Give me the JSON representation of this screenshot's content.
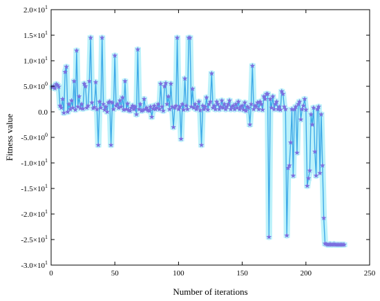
{
  "chart_data": {
    "type": "line",
    "title": "",
    "xlabel": "Number of iterations",
    "ylabel": "Fitness value",
    "xlim": [
      0,
      250
    ],
    "ylim": [
      -30,
      20
    ],
    "x_ticks": [
      {
        "value": 0,
        "label": "0"
      },
      {
        "value": 50,
        "label": "50"
      },
      {
        "value": 100,
        "label": "100"
      },
      {
        "value": 150,
        "label": "150"
      },
      {
        "value": 200,
        "label": "200"
      },
      {
        "value": 250,
        "label": "250"
      }
    ],
    "y_ticks": [
      {
        "value": 20,
        "label": "2.0×10",
        "exp": "1"
      },
      {
        "value": 15,
        "label": "1.5×10",
        "exp": "1"
      },
      {
        "value": 10,
        "label": "1.0×10",
        "exp": "1"
      },
      {
        "value": 5,
        "label": "5.0×10",
        "exp": "0"
      },
      {
        "value": 0,
        "label": "0.0",
        "exp": ""
      },
      {
        "value": -5,
        "label": "-5.0×10",
        "exp": "0"
      },
      {
        "value": -10,
        "label": "-1.0×10",
        "exp": "1"
      },
      {
        "value": -15,
        "label": "-1.5×10",
        "exp": "1"
      },
      {
        "value": -20,
        "label": "-2.0×10",
        "exp": "1"
      },
      {
        "value": -25,
        "label": "-2.5×10",
        "exp": "1"
      },
      {
        "value": -30,
        "label": "-3.0×10",
        "exp": "1"
      }
    ],
    "grid": false,
    "line_color": "#3fa9e8",
    "marker_color": "#7b6fe0",
    "band_color": "#bdf2fa",
    "marker": "star",
    "series": [
      {
        "values": [
          [
            1,
            4.8
          ],
          [
            2,
            5.0
          ],
          [
            3,
            4.6
          ],
          [
            4,
            5.4
          ],
          [
            5,
            5.2
          ],
          [
            6,
            4.9
          ],
          [
            7,
            1.2
          ],
          [
            8,
            0.8
          ],
          [
            9,
            2.5
          ],
          [
            10,
            -0.2
          ],
          [
            11,
            7.8
          ],
          [
            12,
            8.8
          ],
          [
            13,
            0.0
          ],
          [
            14,
            1.5
          ],
          [
            15,
            0.5
          ],
          [
            16,
            2.2
          ],
          [
            17,
            0.8
          ],
          [
            18,
            6.0
          ],
          [
            19,
            0.4
          ],
          [
            20,
            12.0
          ],
          [
            21,
            1.0
          ],
          [
            22,
            3.0
          ],
          [
            23,
            0.7
          ],
          [
            24,
            1.5
          ],
          [
            25,
            0.6
          ],
          [
            26,
            5.5
          ],
          [
            27,
            5.0
          ],
          [
            28,
            0.8
          ],
          [
            29,
            1.2
          ],
          [
            30,
            6.0
          ],
          [
            31,
            14.5
          ],
          [
            32,
            1.8
          ],
          [
            33,
            0.7
          ],
          [
            34,
            0.9
          ],
          [
            35,
            5.8
          ],
          [
            36,
            0.5
          ],
          [
            37,
            -6.5
          ],
          [
            38,
            2.0
          ],
          [
            39,
            0.8
          ],
          [
            40,
            14.5
          ],
          [
            41,
            1.5
          ],
          [
            42,
            0.4
          ],
          [
            43,
            1.0
          ],
          [
            44,
            0.0
          ],
          [
            45,
            1.8
          ],
          [
            46,
            2.0
          ],
          [
            47,
            -6.5
          ],
          [
            48,
            1.8
          ],
          [
            49,
            0.5
          ],
          [
            50,
            11.0
          ],
          [
            51,
            1.2
          ],
          [
            52,
            1.5
          ],
          [
            53,
            0.8
          ],
          [
            54,
            2.2
          ],
          [
            55,
            1.0
          ],
          [
            56,
            2.8
          ],
          [
            57,
            0.4
          ],
          [
            58,
            6.0
          ],
          [
            59,
            0.5
          ],
          [
            60,
            1.6
          ],
          [
            61,
            0.3
          ],
          [
            62,
            0.2
          ],
          [
            63,
            0.8
          ],
          [
            64,
            1.2
          ],
          [
            65,
            0.5
          ],
          [
            66,
            1.0
          ],
          [
            67,
            -0.5
          ],
          [
            68,
            12.2
          ],
          [
            69,
            0.5
          ],
          [
            70,
            1.5
          ],
          [
            71,
            0.2
          ],
          [
            72,
            0.3
          ],
          [
            73,
            2.5
          ],
          [
            74,
            0.5
          ],
          [
            75,
            0.8
          ],
          [
            76,
            0.3
          ],
          [
            77,
            0.2
          ],
          [
            78,
            1.0
          ],
          [
            79,
            -1.0
          ],
          [
            80,
            0.6
          ],
          [
            81,
            1.2
          ],
          [
            82,
            0.5
          ],
          [
            83,
            0.8
          ],
          [
            84,
            1.5
          ],
          [
            85,
            0.5
          ],
          [
            86,
            5.5
          ],
          [
            87,
            1.0
          ],
          [
            88,
            0.2
          ],
          [
            89,
            5.0
          ],
          [
            90,
            5.6
          ],
          [
            91,
            1.5
          ],
          [
            92,
            3.0
          ],
          [
            93,
            0.5
          ],
          [
            94,
            5.5
          ],
          [
            95,
            1.0
          ],
          [
            96,
            -3.0
          ],
          [
            97,
            0.8
          ],
          [
            98,
            1.2
          ],
          [
            99,
            14.5
          ],
          [
            100,
            0.5
          ],
          [
            101,
            1.0
          ],
          [
            102,
            -5.3
          ],
          [
            103,
            1.5
          ],
          [
            104,
            0.4
          ],
          [
            105,
            6.5
          ],
          [
            106,
            1.2
          ],
          [
            107,
            0.5
          ],
          [
            108,
            14.5
          ],
          [
            109,
            14.5
          ],
          [
            110,
            1.0
          ],
          [
            111,
            4.5
          ],
          [
            112,
            0.8
          ],
          [
            113,
            1.5
          ],
          [
            114,
            0.5
          ],
          [
            115,
            1.0
          ],
          [
            116,
            2.0
          ],
          [
            117,
            0.3
          ],
          [
            118,
            -6.5
          ],
          [
            119,
            1.2
          ],
          [
            120,
            0.5
          ],
          [
            121,
            1.0
          ],
          [
            122,
            2.8
          ],
          [
            123,
            0.4
          ],
          [
            124,
            1.5
          ],
          [
            125,
            2.0
          ],
          [
            126,
            7.5
          ],
          [
            127,
            0.8
          ],
          [
            128,
            1.2
          ],
          [
            129,
            0.5
          ],
          [
            130,
            2.0
          ],
          [
            131,
            1.5
          ],
          [
            132,
            0.5
          ],
          [
            133,
            1.0
          ],
          [
            134,
            2.2
          ],
          [
            135,
            0.8
          ],
          [
            136,
            1.5
          ],
          [
            137,
            0.5
          ],
          [
            138,
            1.0
          ],
          [
            139,
            1.5
          ],
          [
            140,
            2.2
          ],
          [
            141,
            0.5
          ],
          [
            142,
            1.0
          ],
          [
            143,
            1.2
          ],
          [
            144,
            0.5
          ],
          [
            145,
            1.5
          ],
          [
            146,
            0.8
          ],
          [
            147,
            2.0
          ],
          [
            148,
            0.5
          ],
          [
            149,
            1.0
          ],
          [
            150,
            1.2
          ],
          [
            151,
            0.4
          ],
          [
            152,
            1.8
          ],
          [
            153,
            0.2
          ],
          [
            154,
            1.0
          ],
          [
            155,
            0.8
          ],
          [
            156,
            -2.5
          ],
          [
            157,
            1.5
          ],
          [
            158,
            9.0
          ],
          [
            159,
            0.5
          ],
          [
            160,
            1.2
          ],
          [
            161,
            1.0
          ],
          [
            162,
            1.8
          ],
          [
            163,
            0.5
          ],
          [
            164,
            2.0
          ],
          [
            165,
            1.5
          ],
          [
            166,
            0.4
          ],
          [
            167,
            3.0
          ],
          [
            168,
            2.5
          ],
          [
            169,
            3.5
          ],
          [
            170,
            3.5
          ],
          [
            171,
            -24.5
          ],
          [
            172,
            2.5
          ],
          [
            173,
            0.8
          ],
          [
            174,
            3.0
          ],
          [
            175,
            0.5
          ],
          [
            176,
            1.5
          ],
          [
            177,
            2.0
          ],
          [
            178,
            0.5
          ],
          [
            179,
            1.0
          ],
          [
            180,
            0.4
          ],
          [
            181,
            4.0
          ],
          [
            182,
            3.5
          ],
          [
            183,
            1.0
          ],
          [
            184,
            0.5
          ],
          [
            185,
            -24.2
          ],
          [
            186,
            -11.0
          ],
          [
            187,
            -10.5
          ],
          [
            188,
            -6.0
          ],
          [
            189,
            0.5
          ],
          [
            190,
            -12.5
          ],
          [
            191,
            0.5
          ],
          [
            192,
            1.0
          ],
          [
            193,
            -8.0
          ],
          [
            194,
            1.5
          ],
          [
            195,
            2.0
          ],
          [
            196,
            -1.5
          ],
          [
            197,
            0.5
          ],
          [
            198,
            1.2
          ],
          [
            199,
            2.5
          ],
          [
            200,
            0.4
          ],
          [
            201,
            -14.5
          ],
          [
            202,
            -13.0
          ],
          [
            203,
            -11.5
          ],
          [
            204,
            -0.5
          ],
          [
            205,
            -2.5
          ],
          [
            206,
            0.8
          ],
          [
            207,
            -7.8
          ],
          [
            208,
            -12.5
          ],
          [
            209,
            0.5
          ],
          [
            210,
            1.0
          ],
          [
            211,
            -12.0
          ],
          [
            212,
            -0.5
          ],
          [
            213,
            -10.5
          ],
          [
            214,
            -20.8
          ],
          [
            215,
            -25.8
          ],
          [
            216,
            -25.9
          ],
          [
            217,
            -26.0
          ],
          [
            218,
            -26.0
          ],
          [
            219,
            -25.9
          ],
          [
            220,
            -26.0
          ],
          [
            221,
            -26.0
          ],
          [
            222,
            -25.9
          ],
          [
            223,
            -26.0
          ],
          [
            224,
            -26.0
          ],
          [
            225,
            -26.0
          ],
          [
            226,
            -26.0
          ],
          [
            227,
            -26.0
          ],
          [
            228,
            -26.0
          ],
          [
            229,
            -26.0
          ],
          [
            230,
            -26.0
          ]
        ]
      }
    ]
  }
}
